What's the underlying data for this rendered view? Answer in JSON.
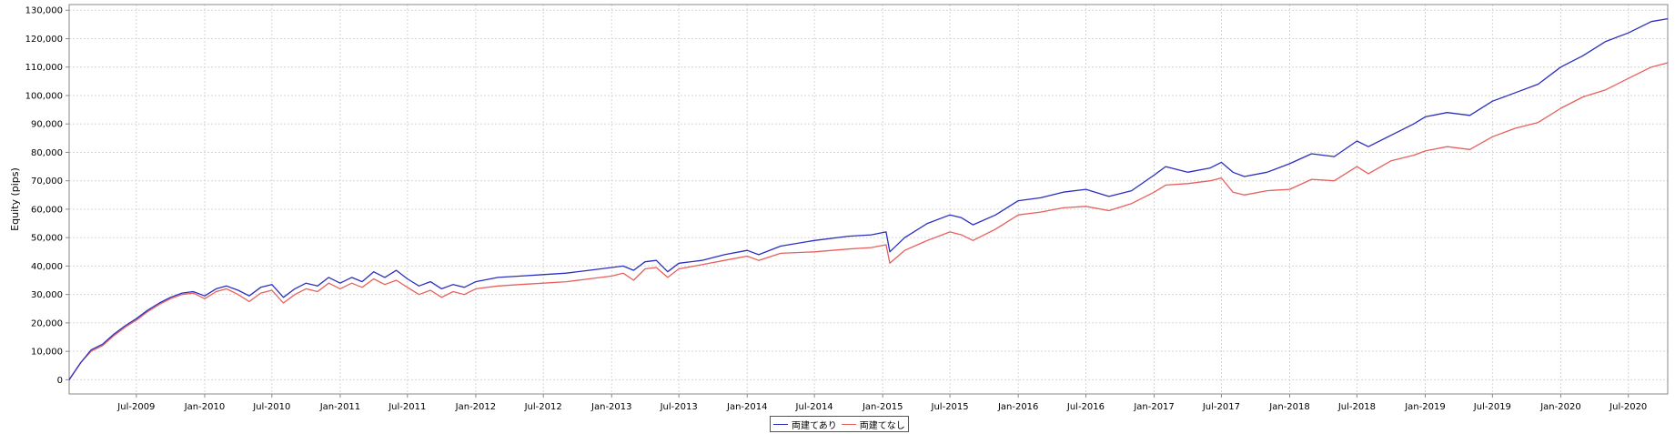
{
  "chart_data": {
    "type": "line",
    "ylabel": "Equity (pips)",
    "xlabel": "",
    "ylim": [
      -5000,
      132000
    ],
    "grid": true,
    "legend_position": "bottom-center",
    "y_ticks": [
      0,
      10000,
      20000,
      30000,
      40000,
      50000,
      60000,
      70000,
      80000,
      90000,
      100000,
      110000,
      120000,
      130000
    ],
    "y_tick_labels": [
      "0",
      "10,000",
      "20,000",
      "30,000",
      "40,000",
      "50,000",
      "60,000",
      "70,000",
      "80,000",
      "90,000",
      "100,000",
      "110,000",
      "120,000",
      "130,000"
    ],
    "x_range": [
      "2009-01-01",
      "2020-10-15"
    ],
    "x_ticks": [
      "2009-07-01",
      "2010-01-01",
      "2010-07-01",
      "2011-01-01",
      "2011-07-01",
      "2012-01-01",
      "2012-07-01",
      "2013-01-01",
      "2013-07-01",
      "2014-01-01",
      "2014-07-01",
      "2015-01-01",
      "2015-07-01",
      "2016-01-01",
      "2016-07-01",
      "2017-01-01",
      "2017-07-01",
      "2018-01-01",
      "2018-07-01",
      "2019-01-01",
      "2019-07-01",
      "2020-01-01",
      "2020-07-01"
    ],
    "x_tick_labels": [
      "Jul-2009",
      "Jan-2010",
      "Jul-2010",
      "Jan-2011",
      "Jul-2011",
      "Jan-2012",
      "Jul-2012",
      "Jan-2013",
      "Jul-2013",
      "Jan-2014",
      "Jul-2014",
      "Jan-2015",
      "Jul-2015",
      "Jan-2016",
      "Jul-2016",
      "Jan-2017",
      "Jul-2017",
      "Jan-2018",
      "Jul-2018",
      "Jan-2019",
      "Jul-2019",
      "Jan-2020",
      "Jul-2020"
    ],
    "series": [
      {
        "name": "両建てあり",
        "color": "#2b2fbf",
        "points": [
          [
            "2009-01-01",
            0
          ],
          [
            "2009-02-01",
            6000
          ],
          [
            "2009-03-01",
            10500
          ],
          [
            "2009-04-01",
            12500
          ],
          [
            "2009-05-01",
            16000
          ],
          [
            "2009-06-01",
            19000
          ],
          [
            "2009-07-01",
            21500
          ],
          [
            "2009-08-01",
            24500
          ],
          [
            "2009-09-01",
            27000
          ],
          [
            "2009-10-01",
            29000
          ],
          [
            "2009-11-01",
            30500
          ],
          [
            "2009-12-01",
            31000
          ],
          [
            "2010-01-01",
            29500
          ],
          [
            "2010-02-01",
            32000
          ],
          [
            "2010-03-01",
            33000
          ],
          [
            "2010-04-01",
            31500
          ],
          [
            "2010-05-01",
            29500
          ],
          [
            "2010-06-01",
            32500
          ],
          [
            "2010-07-01",
            33500
          ],
          [
            "2010-08-01",
            29000
          ],
          [
            "2010-09-01",
            32000
          ],
          [
            "2010-10-01",
            34000
          ],
          [
            "2010-11-01",
            33000
          ],
          [
            "2010-12-01",
            36000
          ],
          [
            "2011-01-01",
            34000
          ],
          [
            "2011-02-01",
            36000
          ],
          [
            "2011-03-01",
            34500
          ],
          [
            "2011-04-01",
            38000
          ],
          [
            "2011-05-01",
            36000
          ],
          [
            "2011-06-01",
            38500
          ],
          [
            "2011-07-01",
            35500
          ],
          [
            "2011-08-01",
            33000
          ],
          [
            "2011-09-01",
            34500
          ],
          [
            "2011-10-01",
            32000
          ],
          [
            "2011-11-01",
            33500
          ],
          [
            "2011-12-01",
            32500
          ],
          [
            "2012-01-01",
            34500
          ],
          [
            "2012-03-01",
            36000
          ],
          [
            "2012-05-01",
            36500
          ],
          [
            "2012-07-01",
            37000
          ],
          [
            "2012-09-01",
            37500
          ],
          [
            "2012-11-01",
            38500
          ],
          [
            "2013-01-01",
            39500
          ],
          [
            "2013-02-01",
            40000
          ],
          [
            "2013-03-01",
            38500
          ],
          [
            "2013-04-01",
            41500
          ],
          [
            "2013-05-01",
            42000
          ],
          [
            "2013-06-01",
            38000
          ],
          [
            "2013-07-01",
            41000
          ],
          [
            "2013-09-01",
            42000
          ],
          [
            "2013-11-01",
            44000
          ],
          [
            "2014-01-01",
            45500
          ],
          [
            "2014-02-01",
            44000
          ],
          [
            "2014-04-01",
            47000
          ],
          [
            "2014-07-01",
            49000
          ],
          [
            "2014-10-01",
            50500
          ],
          [
            "2014-12-01",
            51000
          ],
          [
            "2015-01-10",
            52000
          ],
          [
            "2015-01-20",
            45000
          ],
          [
            "2015-03-01",
            50000
          ],
          [
            "2015-05-01",
            55000
          ],
          [
            "2015-07-01",
            58000
          ],
          [
            "2015-08-01",
            57000
          ],
          [
            "2015-09-01",
            54500
          ],
          [
            "2015-11-01",
            58000
          ],
          [
            "2016-01-01",
            63000
          ],
          [
            "2016-03-01",
            64000
          ],
          [
            "2016-05-01",
            66000
          ],
          [
            "2016-07-01",
            67000
          ],
          [
            "2016-09-01",
            64500
          ],
          [
            "2016-11-01",
            66500
          ],
          [
            "2017-01-01",
            72000
          ],
          [
            "2017-02-01",
            75000
          ],
          [
            "2017-04-01",
            73000
          ],
          [
            "2017-06-01",
            74500
          ],
          [
            "2017-07-01",
            76500
          ],
          [
            "2017-08-01",
            73000
          ],
          [
            "2017-09-01",
            71500
          ],
          [
            "2017-11-01",
            73000
          ],
          [
            "2018-01-01",
            76000
          ],
          [
            "2018-03-01",
            79500
          ],
          [
            "2018-05-01",
            78500
          ],
          [
            "2018-07-01",
            84000
          ],
          [
            "2018-08-01",
            82000
          ],
          [
            "2018-10-01",
            86000
          ],
          [
            "2018-12-01",
            90000
          ],
          [
            "2019-01-01",
            92500
          ],
          [
            "2019-03-01",
            94000
          ],
          [
            "2019-05-01",
            93000
          ],
          [
            "2019-07-01",
            98000
          ],
          [
            "2019-09-01",
            101000
          ],
          [
            "2019-11-01",
            104000
          ],
          [
            "2020-01-01",
            110000
          ],
          [
            "2020-03-01",
            114000
          ],
          [
            "2020-05-01",
            119000
          ],
          [
            "2020-07-01",
            122000
          ],
          [
            "2020-09-01",
            126000
          ],
          [
            "2020-10-15",
            127000
          ]
        ]
      },
      {
        "name": "両建てなし",
        "color": "#e8605c",
        "points": [
          [
            "2009-01-01",
            0
          ],
          [
            "2009-02-01",
            6000
          ],
          [
            "2009-03-01",
            10000
          ],
          [
            "2009-04-01",
            12000
          ],
          [
            "2009-05-01",
            15500
          ],
          [
            "2009-06-01",
            18500
          ],
          [
            "2009-07-01",
            21000
          ],
          [
            "2009-08-01",
            24000
          ],
          [
            "2009-09-01",
            26500
          ],
          [
            "2009-10-01",
            28500
          ],
          [
            "2009-11-01",
            30000
          ],
          [
            "2009-12-01",
            30500
          ],
          [
            "2010-01-01",
            28500
          ],
          [
            "2010-02-01",
            31000
          ],
          [
            "2010-03-01",
            32000
          ],
          [
            "2010-04-01",
            30000
          ],
          [
            "2010-05-01",
            27500
          ],
          [
            "2010-06-01",
            30500
          ],
          [
            "2010-07-01",
            31500
          ],
          [
            "2010-08-01",
            27000
          ],
          [
            "2010-09-01",
            30000
          ],
          [
            "2010-10-01",
            32000
          ],
          [
            "2010-11-01",
            31000
          ],
          [
            "2010-12-01",
            34000
          ],
          [
            "2011-01-01",
            32000
          ],
          [
            "2011-02-01",
            34000
          ],
          [
            "2011-03-01",
            32500
          ],
          [
            "2011-04-01",
            35500
          ],
          [
            "2011-05-01",
            33500
          ],
          [
            "2011-06-01",
            35000
          ],
          [
            "2011-07-01",
            32500
          ],
          [
            "2011-08-01",
            30000
          ],
          [
            "2011-09-01",
            31500
          ],
          [
            "2011-10-01",
            29000
          ],
          [
            "2011-11-01",
            31000
          ],
          [
            "2011-12-01",
            30000
          ],
          [
            "2012-01-01",
            32000
          ],
          [
            "2012-03-01",
            33000
          ],
          [
            "2012-05-01",
            33500
          ],
          [
            "2012-07-01",
            34000
          ],
          [
            "2012-09-01",
            34500
          ],
          [
            "2012-11-01",
            35500
          ],
          [
            "2013-01-01",
            36500
          ],
          [
            "2013-02-01",
            37500
          ],
          [
            "2013-03-01",
            35000
          ],
          [
            "2013-04-01",
            39000
          ],
          [
            "2013-05-01",
            39500
          ],
          [
            "2013-06-01",
            36000
          ],
          [
            "2013-07-01",
            39000
          ],
          [
            "2013-09-01",
            40500
          ],
          [
            "2013-11-01",
            42000
          ],
          [
            "2014-01-01",
            43500
          ],
          [
            "2014-02-01",
            42000
          ],
          [
            "2014-04-01",
            44500
          ],
          [
            "2014-07-01",
            45000
          ],
          [
            "2014-10-01",
            46000
          ],
          [
            "2014-12-01",
            46500
          ],
          [
            "2015-01-10",
            47500
          ],
          [
            "2015-01-20",
            41000
          ],
          [
            "2015-03-01",
            45500
          ],
          [
            "2015-05-01",
            49000
          ],
          [
            "2015-07-01",
            52000
          ],
          [
            "2015-08-01",
            51000
          ],
          [
            "2015-09-01",
            49000
          ],
          [
            "2015-11-01",
            53000
          ],
          [
            "2016-01-01",
            58000
          ],
          [
            "2016-03-01",
            59000
          ],
          [
            "2016-05-01",
            60500
          ],
          [
            "2016-07-01",
            61000
          ],
          [
            "2016-09-01",
            59500
          ],
          [
            "2016-11-01",
            62000
          ],
          [
            "2017-01-01",
            66000
          ],
          [
            "2017-02-01",
            68500
          ],
          [
            "2017-04-01",
            69000
          ],
          [
            "2017-06-01",
            70000
          ],
          [
            "2017-07-01",
            71000
          ],
          [
            "2017-08-01",
            66000
          ],
          [
            "2017-09-01",
            65000
          ],
          [
            "2017-11-01",
            66500
          ],
          [
            "2018-01-01",
            67000
          ],
          [
            "2018-03-01",
            70500
          ],
          [
            "2018-05-01",
            70000
          ],
          [
            "2018-07-01",
            75000
          ],
          [
            "2018-08-01",
            72500
          ],
          [
            "2018-10-01",
            77000
          ],
          [
            "2018-12-01",
            79000
          ],
          [
            "2019-01-01",
            80500
          ],
          [
            "2019-03-01",
            82000
          ],
          [
            "2019-05-01",
            81000
          ],
          [
            "2019-07-01",
            85500
          ],
          [
            "2019-09-01",
            88500
          ],
          [
            "2019-11-01",
            90500
          ],
          [
            "2020-01-01",
            95500
          ],
          [
            "2020-03-01",
            99500
          ],
          [
            "2020-05-01",
            102000
          ],
          [
            "2020-07-01",
            106000
          ],
          [
            "2020-09-01",
            110000
          ],
          [
            "2020-10-15",
            111500
          ]
        ]
      }
    ]
  }
}
